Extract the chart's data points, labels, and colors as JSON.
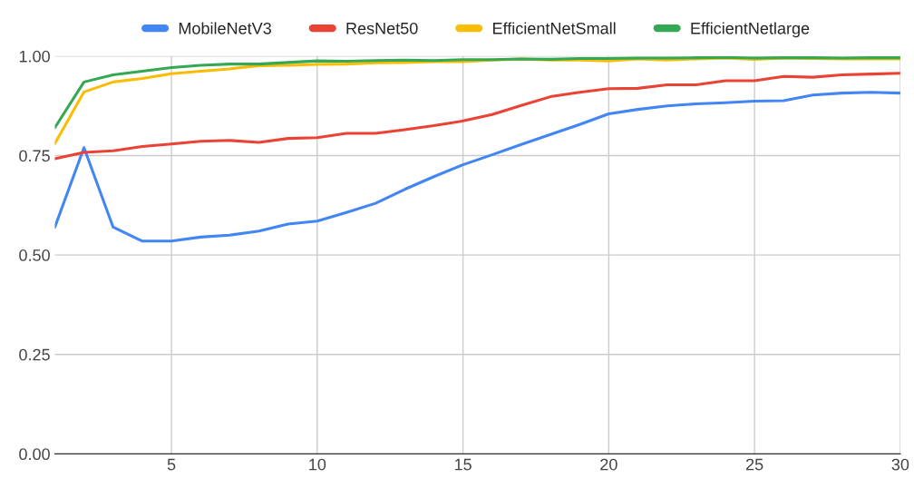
{
  "chart_data": {
    "type": "line",
    "x": [
      1,
      2,
      3,
      4,
      5,
      6,
      7,
      8,
      9,
      10,
      11,
      12,
      13,
      14,
      15,
      16,
      17,
      18,
      19,
      20,
      21,
      22,
      23,
      24,
      25,
      26,
      27,
      28,
      29,
      30
    ],
    "series": [
      {
        "name": "MobileNetV3",
        "color": "#4285f4",
        "values": [
          0.57,
          0.77,
          0.57,
          0.535,
          0.535,
          0.545,
          0.55,
          0.56,
          0.578,
          0.585,
          0.607,
          0.63,
          0.665,
          0.697,
          0.727,
          0.752,
          0.778,
          0.803,
          0.828,
          0.855,
          0.866,
          0.875,
          0.88,
          0.883,
          0.887,
          0.888,
          0.902,
          0.907,
          0.909,
          0.907
        ]
      },
      {
        "name": "ResNet50",
        "color": "#ea4335",
        "values": [
          0.742,
          0.758,
          0.762,
          0.773,
          0.779,
          0.786,
          0.788,
          0.783,
          0.793,
          0.795,
          0.806,
          0.806,
          0.815,
          0.825,
          0.837,
          0.853,
          0.876,
          0.898,
          0.909,
          0.918,
          0.919,
          0.928,
          0.928,
          0.938,
          0.938,
          0.949,
          0.947,
          0.953,
          0.955,
          0.957
        ]
      },
      {
        "name": "EfficientNetSmall",
        "color": "#fbbc04",
        "values": [
          0.78,
          0.91,
          0.935,
          0.944,
          0.956,
          0.962,
          0.968,
          0.976,
          0.977,
          0.979,
          0.98,
          0.983,
          0.984,
          0.986,
          0.986,
          0.99,
          0.993,
          0.99,
          0.99,
          0.988,
          0.993,
          0.99,
          0.993,
          0.995,
          0.992,
          0.995,
          0.994,
          0.993,
          0.993,
          0.993
        ]
      },
      {
        "name": "EfficientNetlarge",
        "color": "#34a853",
        "values": [
          0.82,
          0.935,
          0.953,
          0.962,
          0.971,
          0.977,
          0.98,
          0.98,
          0.984,
          0.988,
          0.987,
          0.989,
          0.99,
          0.989,
          0.991,
          0.991,
          0.993,
          0.992,
          0.994,
          0.994,
          0.995,
          0.995,
          0.996,
          0.997,
          0.995,
          0.996,
          0.996,
          0.995,
          0.996,
          0.996
        ]
      }
    ],
    "xlim": [
      1,
      30
    ],
    "xticks": [
      5,
      10,
      15,
      20,
      25,
      30
    ],
    "ylim": [
      0,
      1
    ],
    "yticks": [
      {
        "value": 0,
        "label": "0.00"
      },
      {
        "value": 0.25,
        "label": "0.25"
      },
      {
        "value": 0.5,
        "label": "0.50"
      },
      {
        "value": 0.75,
        "label": "0.75"
      },
      {
        "value": 1,
        "label": "1.00"
      }
    ],
    "grid": true,
    "legend": "top",
    "marker": "none",
    "line_style": "solid"
  }
}
